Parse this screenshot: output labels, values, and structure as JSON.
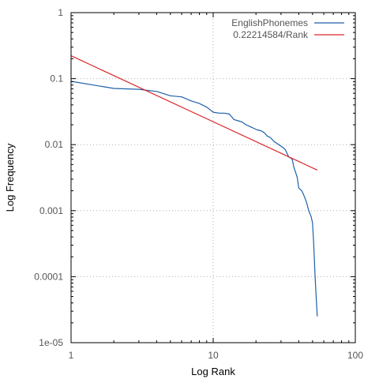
{
  "chart_data": {
    "type": "line",
    "xlabel": "Log Rank",
    "ylabel": "Log Frequency",
    "x_scale": "log",
    "y_scale": "log",
    "xlim": [
      1,
      100
    ],
    "ylim": [
      1e-05,
      1
    ],
    "grid": true,
    "legend_position": "top-right",
    "x_ticks": [
      {
        "value": 1,
        "label": "1"
      },
      {
        "value": 10,
        "label": "10"
      },
      {
        "value": 100,
        "label": "100"
      }
    ],
    "y_ticks": [
      {
        "value": 1,
        "label": "1"
      },
      {
        "value": 0.1,
        "label": "0.1"
      },
      {
        "value": 0.01,
        "label": "0.01"
      },
      {
        "value": 0.001,
        "label": "0.001"
      },
      {
        "value": 0.0001,
        "label": "0.0001"
      },
      {
        "value": 1e-05,
        "label": "1e-05"
      }
    ],
    "series": [
      {
        "name": "EnglishPhonemes",
        "color": "#1f5fa8",
        "x": [
          1,
          2,
          3,
          4,
          5,
          6,
          7,
          8,
          9,
          10,
          11,
          12,
          13,
          14,
          15,
          16,
          17,
          18,
          19,
          20,
          21,
          22,
          23,
          24,
          25,
          26,
          27,
          28,
          29,
          30,
          31,
          32,
          33,
          34,
          35,
          36,
          37,
          38,
          39,
          40,
          41,
          42,
          43,
          44,
          45,
          46,
          47,
          48,
          49,
          50,
          51,
          52,
          53,
          54
        ],
        "y": [
          0.091,
          0.071,
          0.069,
          0.064,
          0.055,
          0.053,
          0.046,
          0.042,
          0.037,
          0.031,
          0.03,
          0.03,
          0.029,
          0.024,
          0.023,
          0.022,
          0.02,
          0.019,
          0.018,
          0.017,
          0.0165,
          0.016,
          0.015,
          0.0135,
          0.013,
          0.012,
          0.011,
          0.0105,
          0.01,
          0.0095,
          0.009,
          0.0085,
          0.0075,
          0.0065,
          0.0063,
          0.006,
          0.0045,
          0.0038,
          0.0032,
          0.0022,
          0.0021,
          0.002,
          0.0018,
          0.0016,
          0.0014,
          0.0012,
          0.001,
          0.0009,
          0.0008,
          0.00065,
          0.0003,
          0.00011,
          5e-05,
          2.5e-05
        ]
      },
      {
        "name": "0.22214584/Rank",
        "color": "#d9262b",
        "x": [
          1,
          54
        ],
        "y": [
          0.22214584,
          0.0041138
        ]
      }
    ]
  }
}
